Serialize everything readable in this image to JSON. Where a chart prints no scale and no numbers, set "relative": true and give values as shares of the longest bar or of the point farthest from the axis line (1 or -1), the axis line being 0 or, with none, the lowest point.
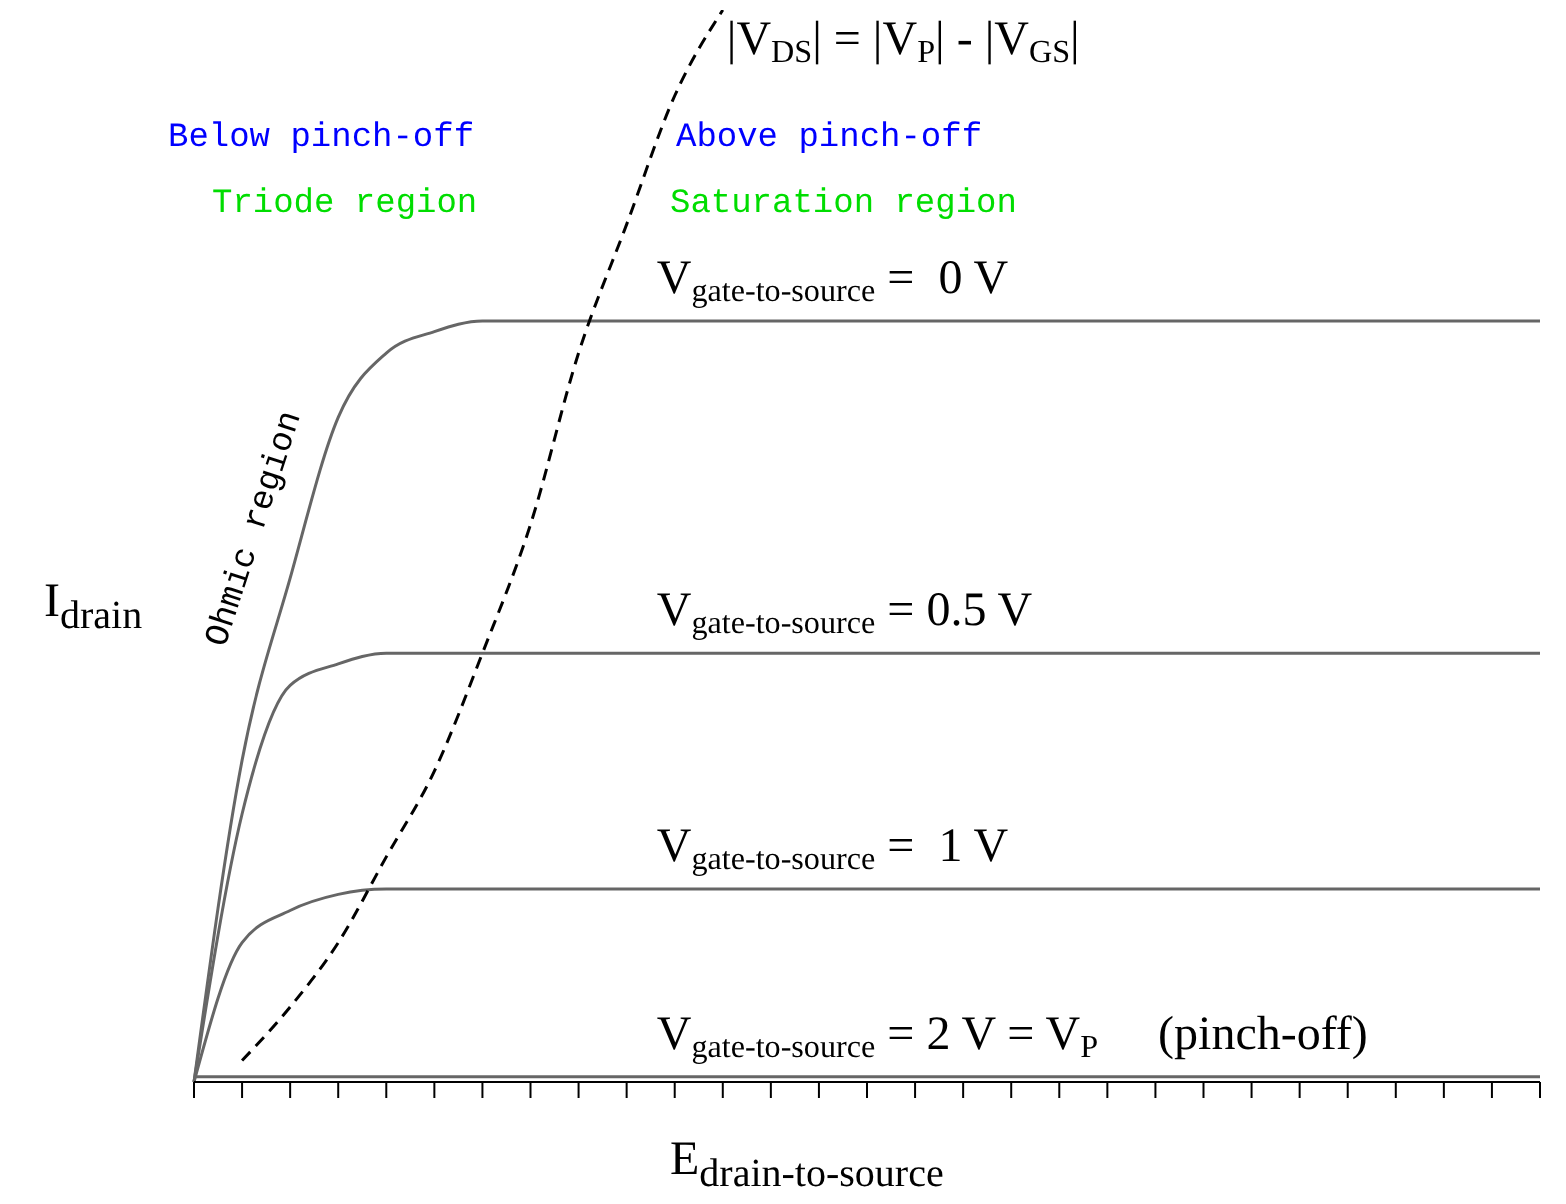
{
  "chart_data": {
    "type": "line",
    "relative": true,
    "xlabel": "E$_{drain-to-source}$",
    "ylabel": "I$_{drain}$",
    "categories": [
      null,
      null,
      null,
      null,
      null,
      null,
      null,
      null,
      null,
      null,
      null,
      null,
      null,
      null,
      null,
      null,
      null,
      null,
      null,
      null,
      null,
      null,
      null,
      null,
      null,
      null,
      null,
      null,
      null
    ],
    "series": [
      {
        "name": "V$_{gate-to-source}$ =  0 V",
        "color": "#666666",
        "values": [
          0,
          0.3,
          0.47,
          0.62,
          0.68,
          0.7,
          0.71,
          0.71,
          0.71,
          0.71,
          0.71,
          0.71,
          0.71,
          0.71,
          0.71,
          0.71,
          0.71,
          0.71,
          0.71,
          0.71,
          0.71,
          0.71,
          0.71,
          0.71,
          0.71,
          0.71,
          0.71,
          0.71,
          0.71
        ]
      },
      {
        "name": "V$_{gate-to-source}$ = 0.5 V",
        "color": "#666666",
        "values": [
          0,
          0.25,
          0.37,
          0.39,
          0.4,
          0.4,
          0.4,
          0.4,
          0.4,
          0.4,
          0.4,
          0.4,
          0.4,
          0.4,
          0.4,
          0.4,
          0.4,
          0.4,
          0.4,
          0.4,
          0.4,
          0.4,
          0.4,
          0.4,
          0.4,
          0.4,
          0.4,
          0.4,
          0.4
        ]
      },
      {
        "name": "V$_{gate-to-source}$ =  1 V",
        "color": "#666666",
        "values": [
          0,
          0.13,
          0.16,
          0.175,
          0.18,
          0.18,
          0.18,
          0.18,
          0.18,
          0.18,
          0.18,
          0.18,
          0.18,
          0.18,
          0.18,
          0.18,
          0.18,
          0.18,
          0.18,
          0.18,
          0.18,
          0.18,
          0.18,
          0.18,
          0.18,
          0.18,
          0.18,
          0.18,
          0.18
        ]
      },
      {
        "name": "V$_{gate-to-source}$ = 2 V = V$_{P}$     (pinch-off)",
        "color": "#666666",
        "values": [
          0.005,
          0.005,
          0.005,
          0.005,
          0.005,
          0.005,
          0.005,
          0.005,
          0.005,
          0.005,
          0.005,
          0.005,
          0.005,
          0.005,
          0.005,
          0.005,
          0.005,
          0.005,
          0.005,
          0.005,
          0.005,
          0.005,
          0.005,
          0.005,
          0.005,
          0.005,
          0.005,
          0.005,
          0.005
        ]
      },
      {
        "name": "|V$_{DS}$| = |V$_{P}$| - |V$_{GS}$|",
        "color": "#000000",
        "line_style": "dashed",
        "values": [
          null,
          0.02,
          0.07,
          0.13,
          0.21,
          0.29,
          0.4,
          0.52,
          0.68,
          0.8,
          0.92,
          1.0,
          null,
          null,
          null,
          null,
          null,
          null,
          null,
          null,
          null,
          null,
          null,
          null,
          null,
          null,
          null,
          null,
          null
        ]
      }
    ],
    "annotations": [
      "Below pinch-off",
      "Above pinch-off",
      "Triode region",
      "Saturation region",
      "Ohmic region"
    ],
    "marker": "none"
  }
}
